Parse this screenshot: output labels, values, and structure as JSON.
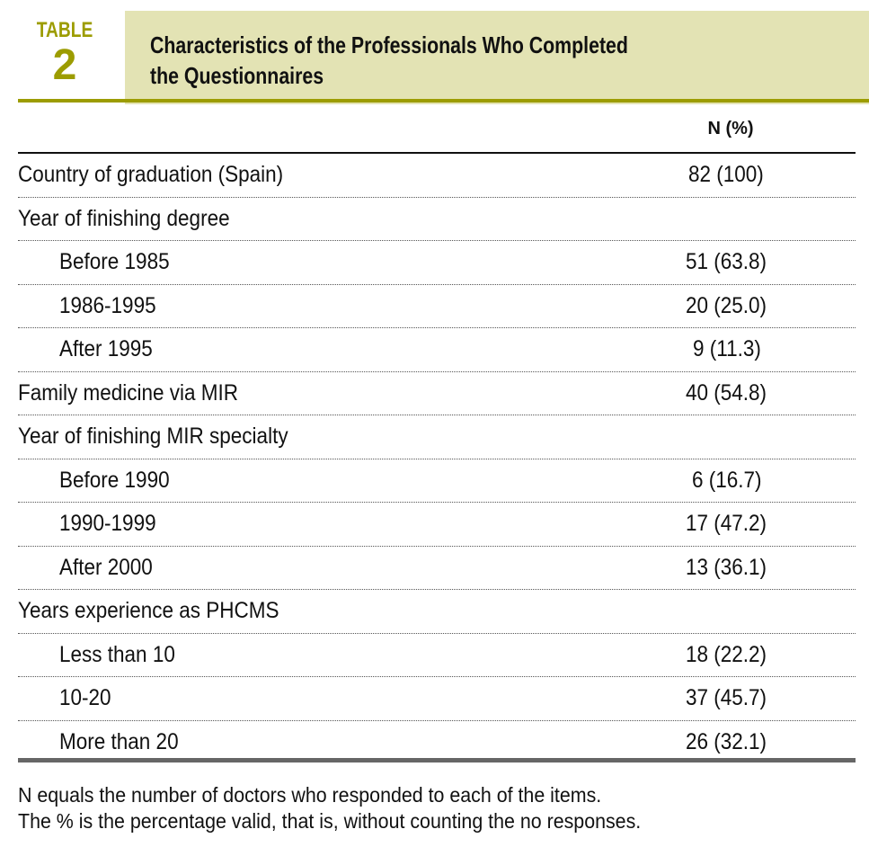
{
  "header": {
    "label": "TABLE",
    "number": "2",
    "title_line1": "Characteristics of the Professionals Who Completed",
    "title_line2": "the Questionnaires"
  },
  "column_header": "N (%)",
  "rows": [
    {
      "label": "Country of graduation (Spain)",
      "value": "82 (100)",
      "indent": false
    },
    {
      "label": "Year of finishing degree",
      "value": "",
      "indent": false
    },
    {
      "label": "Before 1985",
      "value": "51 (63.8)",
      "indent": true
    },
    {
      "label": "1986-1995",
      "value": "20 (25.0)",
      "indent": true
    },
    {
      "label": "After 1995",
      "value": "9 (11.3)",
      "indent": true
    },
    {
      "label": "Family medicine via MIR",
      "value": "40 (54.8)",
      "indent": false
    },
    {
      "label": "Year of finishing MIR specialty",
      "value": "",
      "indent": false
    },
    {
      "label": "Before 1990",
      "value": "6 (16.7)",
      "indent": true
    },
    {
      "label": "1990-1999",
      "value": "17 (47.2)",
      "indent": true
    },
    {
      "label": "After 2000",
      "value": "13 (36.1)",
      "indent": true
    },
    {
      "label": "Years experience as PHCMS",
      "value": "",
      "indent": false
    },
    {
      "label": "Less than 10",
      "value": "18 (22.2)",
      "indent": true
    },
    {
      "label": "10-20",
      "value": "37 (45.7)",
      "indent": true
    },
    {
      "label": "More than 20",
      "value": "26 (32.1)",
      "indent": true
    }
  ],
  "notes": [
    "N equals the number of doctors who responded to each of the items.",
    "The % is the percentage valid, that is, without counting the no responses."
  ]
}
